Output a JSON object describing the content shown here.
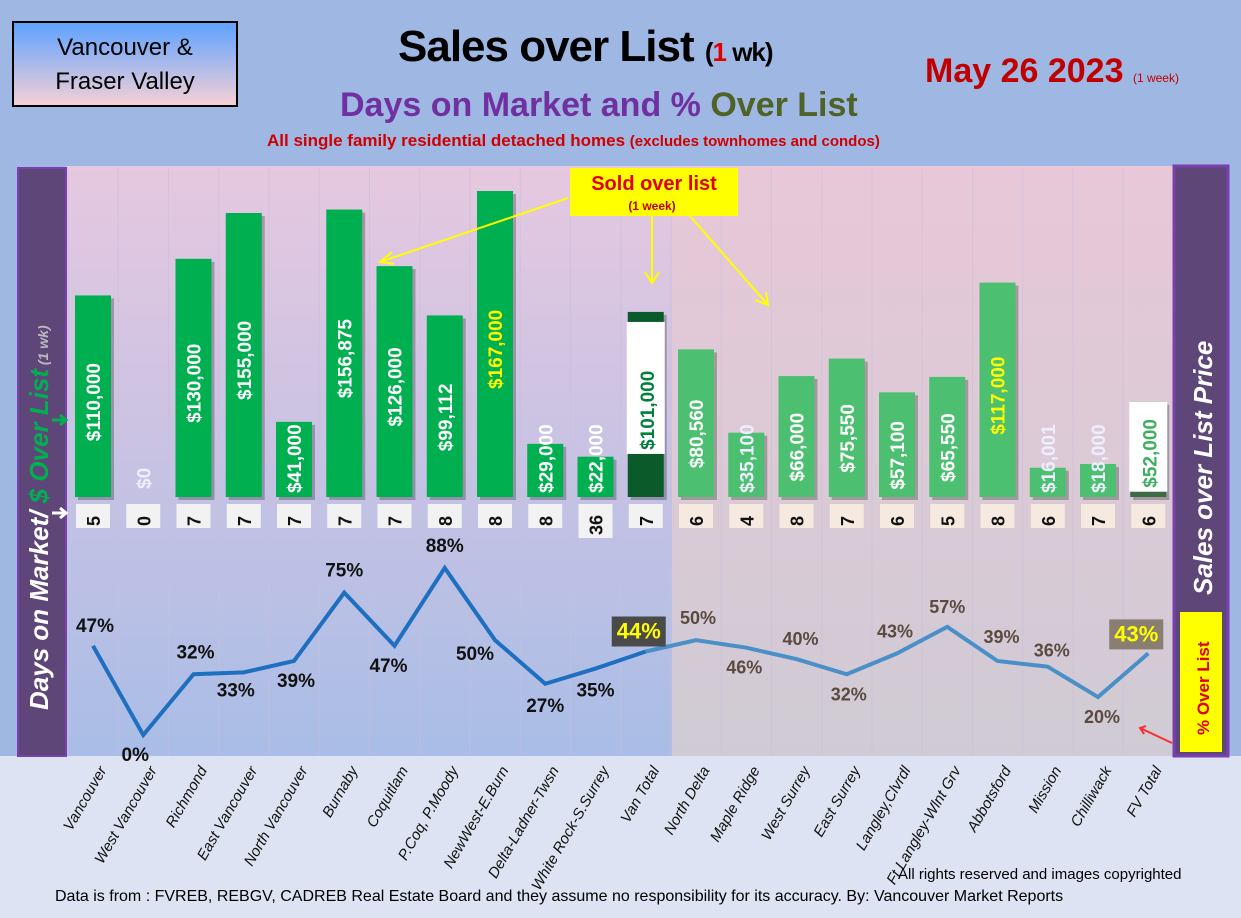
{
  "header": {
    "region_box": [
      "Vancouver &",
      "Fraser Valley"
    ],
    "title": "Sales over List",
    "title_paren_open": "(",
    "title_paren_num": "1",
    "title_paren_rest": " wk)",
    "subtitle_a": "Days on Market and % ",
    "subtitle_b": "Over List",
    "description": "All single family residential detached homes ",
    "description_paren": "(excludes townhomes and condos)",
    "date": "May 26  2023",
    "date_note": "(1 week)"
  },
  "footer": {
    "rights": "All rights reserved and  images copyrighted",
    "source": "Data is from : FVREB, REBGV, CADREB Real Estate Board and they assume no responsibility for its accuracy. By: Vancouver Market Reports"
  },
  "chart_data": {
    "type": "bar+line",
    "title": "Sales over List (1 wk)",
    "left_axis_label": "Days on Market/ $ Over List",
    "left_axis_note": "(1 wk)",
    "right_axis_label": "Sales over List Price",
    "line_legend": "% Over List",
    "callout": "Sold over list",
    "callout_note": "(1 week)",
    "categories": [
      "Vancouver",
      "West Vancouver",
      "Richmond",
      "East Vancouver",
      "North Vancouver",
      "Burnaby",
      "Coquitlam",
      "P.Coq, P.Moody",
      "NewWest-E.Burn",
      "Delta-Ladner-Twsn",
      "White Rock-S.Surrey",
      "Van Total",
      "North Delta",
      "Maple Ridge",
      "West Surrey",
      "East Surrey",
      "Langley,Clvrdl",
      "Ft Langley-Wlnt Grv",
      "Abbotsford",
      "Mission",
      "Chilliwack",
      "FV Total"
    ],
    "groups": {
      "Vancouver (REBGV)": [
        0,
        11
      ],
      "Fraser Valley (FVREB)": [
        12,
        21
      ]
    },
    "series": [
      {
        "name": "$ Over List",
        "type": "bar",
        "values": [
          110000,
          0,
          130000,
          155000,
          41000,
          156875,
          126000,
          99112,
          167000,
          29000,
          22000,
          101000,
          80560,
          35100,
          66000,
          75550,
          57100,
          65550,
          117000,
          16001,
          18000,
          52000
        ],
        "labels": [
          "$110,000",
          "$0",
          "$130,000",
          "$155,000",
          "$41,000",
          "$156,875",
          "$126,000",
          "$99,112",
          "$167,000",
          "$29,000",
          "$22,000",
          "$101,000",
          "$80,560",
          "$35,100",
          "$66,000",
          "$75,550",
          "$57,100",
          "$65,550",
          "$117,000",
          "$16,001",
          "$18,000",
          "$52,000"
        ]
      },
      {
        "name": "Days on Market",
        "type": "label",
        "values": [
          5,
          0,
          7,
          7,
          7,
          7,
          7,
          8,
          8,
          8,
          36,
          7,
          6,
          4,
          8,
          7,
          6,
          5,
          8,
          6,
          7,
          6
        ]
      },
      {
        "name": "% Over List",
        "type": "line",
        "values": [
          47,
          0,
          32,
          33,
          39,
          75,
          47,
          88,
          50,
          27,
          35,
          44,
          50,
          46,
          40,
          32,
          43,
          57,
          39,
          36,
          20,
          43
        ],
        "labels": [
          "47%",
          "0%",
          "32%",
          "33%",
          "39%",
          "75%",
          "47%",
          "88%",
          "50%",
          "27%",
          "35%",
          "44%",
          "50%",
          "46%",
          "40%",
          "32%",
          "43%",
          "57%",
          "39%",
          "36%",
          "20%",
          "43%"
        ]
      }
    ],
    "colors": {
      "bar_van": "#00b050",
      "bar_fv": "#4cc070",
      "bar_van_total": "#0b5a2a",
      "bar_fv_total": "#3d6b44",
      "line_van": "#1f6fc0",
      "line_fv": "#4a8fc8",
      "highlight_label": "#ffff00"
    }
  }
}
